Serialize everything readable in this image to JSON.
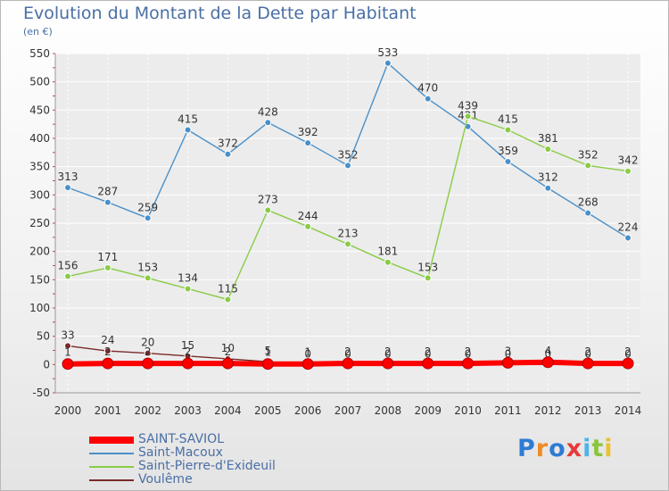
{
  "title": "Evolution du Montant de la Dette par Habitant",
  "subtitle": "(en €)",
  "logo": {
    "text": "Proxiti",
    "colors": [
      "#2e7bd6",
      "#f08a24",
      "#2e7bd6",
      "#e73a3a",
      "#4fb4e8",
      "#8ac53e",
      "#e9c32b"
    ]
  },
  "chart_data": {
    "type": "line",
    "x": [
      2000,
      2001,
      2002,
      2003,
      2004,
      2005,
      2006,
      2007,
      2008,
      2009,
      2010,
      2011,
      2012,
      2013,
      2014
    ],
    "ylim": [
      -50,
      550
    ],
    "yticks": [
      -50,
      0,
      50,
      100,
      150,
      200,
      250,
      300,
      350,
      400,
      450,
      500,
      550
    ],
    "grid": true,
    "legend_position": "bottom-left",
    "series": [
      {
        "name": "SAINT-SAVIOL",
        "color": "#ff0000",
        "values": [
          1,
          2,
          2,
          2,
          2,
          1,
          1,
          2,
          2,
          2,
          2,
          3,
          4,
          2,
          2
        ],
        "labels": [
          "1",
          "2",
          "2",
          "2",
          "2",
          "1",
          "1",
          "2",
          "2",
          "2",
          "2",
          "3",
          "4",
          "2",
          "2"
        ]
      },
      {
        "name": "Saint-Macoux",
        "color": "#4a90c8",
        "values": [
          313,
          287,
          259,
          415,
          372,
          428,
          392,
          352,
          533,
          470,
          421,
          359,
          312,
          268,
          224
        ],
        "labels": [
          "313",
          "287",
          "259",
          "415",
          "372",
          "428",
          "392",
          "352",
          "533",
          "470",
          "421",
          "359",
          "312",
          "268",
          "224"
        ]
      },
      {
        "name": "Saint-Pierre-d'Exideuil",
        "color": "#8acc46",
        "values": [
          156,
          171,
          153,
          134,
          115,
          273,
          244,
          213,
          181,
          153,
          439,
          415,
          381,
          352,
          342
        ],
        "labels": [
          "156",
          "171",
          "153",
          "134",
          "115",
          "273",
          "244",
          "213",
          "181",
          "153",
          "439",
          "415",
          "381",
          "352",
          "342"
        ]
      },
      {
        "name": "Voulême",
        "color": "#7a2a2a",
        "values": [
          33,
          24,
          20,
          15,
          10,
          5,
          0,
          0,
          0,
          0,
          0,
          0,
          0,
          0,
          0
        ],
        "labels": [
          "33",
          "24",
          "20",
          "15",
          "10",
          "5",
          "0",
          "0",
          "0",
          "0",
          "0",
          "0",
          "0",
          "0",
          "0"
        ]
      }
    ]
  }
}
